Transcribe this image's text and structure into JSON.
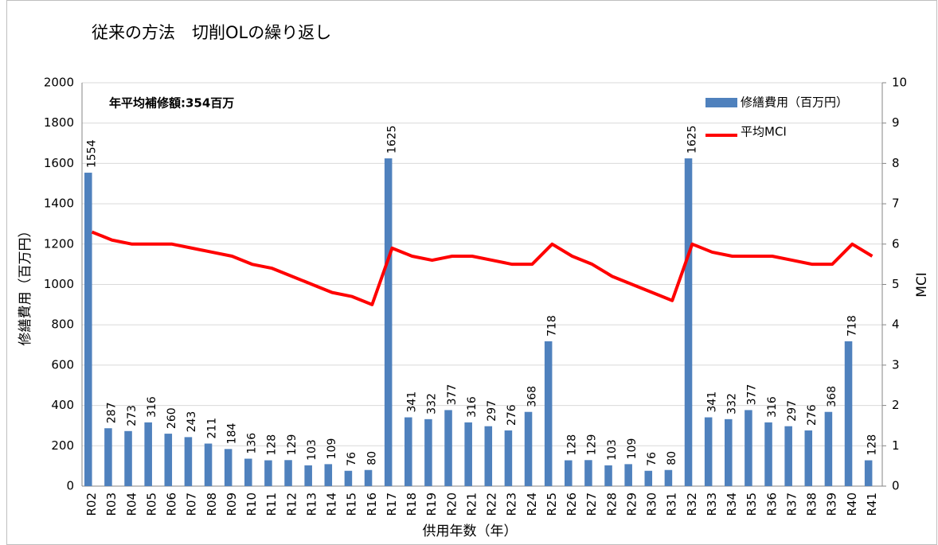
{
  "chart_data": {
    "type": "bar",
    "title": "従来の方法　切削OLの繰り返し",
    "annotation": "年平均補修額:354百万",
    "xlabel": "供用年数（年）",
    "ylabel": "修繕費用（百万円）",
    "y2label": "MCI",
    "categories": [
      "R02",
      "R03",
      "R04",
      "R05",
      "R06",
      "R07",
      "R08",
      "R09",
      "R10",
      "R11",
      "R12",
      "R13",
      "R14",
      "R15",
      "R16",
      "R17",
      "R18",
      "R19",
      "R20",
      "R21",
      "R22",
      "R23",
      "R24",
      "R25",
      "R26",
      "R27",
      "R28",
      "R29",
      "R30",
      "R31",
      "R32",
      "R33",
      "R34",
      "R35",
      "R36",
      "R37",
      "R38",
      "R39",
      "R40",
      "R41"
    ],
    "series": [
      {
        "name": "修繕費用（百万円）",
        "type": "bar",
        "color": "#4f81bd",
        "values": [
          1554,
          287,
          273,
          316,
          260,
          243,
          211,
          184,
          136,
          128,
          129,
          103,
          109,
          76,
          80,
          1625,
          341,
          332,
          377,
          316,
          297,
          276,
          368,
          718,
          128,
          129,
          103,
          109,
          76,
          80,
          1625,
          341,
          332,
          377,
          316,
          297,
          276,
          368,
          718,
          128
        ]
      },
      {
        "name": "平均MCI",
        "type": "line",
        "axis": "y2",
        "color": "#ff0000",
        "values": [
          6.3,
          6.1,
          6.0,
          6.0,
          6.0,
          5.9,
          5.8,
          5.7,
          5.5,
          5.4,
          5.2,
          5.0,
          4.8,
          4.7,
          4.5,
          5.9,
          5.7,
          5.6,
          5.7,
          5.7,
          5.6,
          5.5,
          5.5,
          6.0,
          5.7,
          5.5,
          5.2,
          5.0,
          4.8,
          4.6,
          6.0,
          5.8,
          5.7,
          5.7,
          5.7,
          5.6,
          5.5,
          5.5,
          6.0,
          5.7
        ]
      }
    ],
    "ylim": [
      0,
      2000
    ],
    "yticks": [
      0,
      200,
      400,
      600,
      800,
      1000,
      1200,
      1400,
      1600,
      1800,
      2000
    ],
    "y2lim": [
      0,
      10
    ],
    "y2ticks": [
      0,
      1,
      2,
      3,
      4,
      5,
      6,
      7,
      8,
      9,
      10
    ],
    "grid": true,
    "legend": "upper right"
  }
}
